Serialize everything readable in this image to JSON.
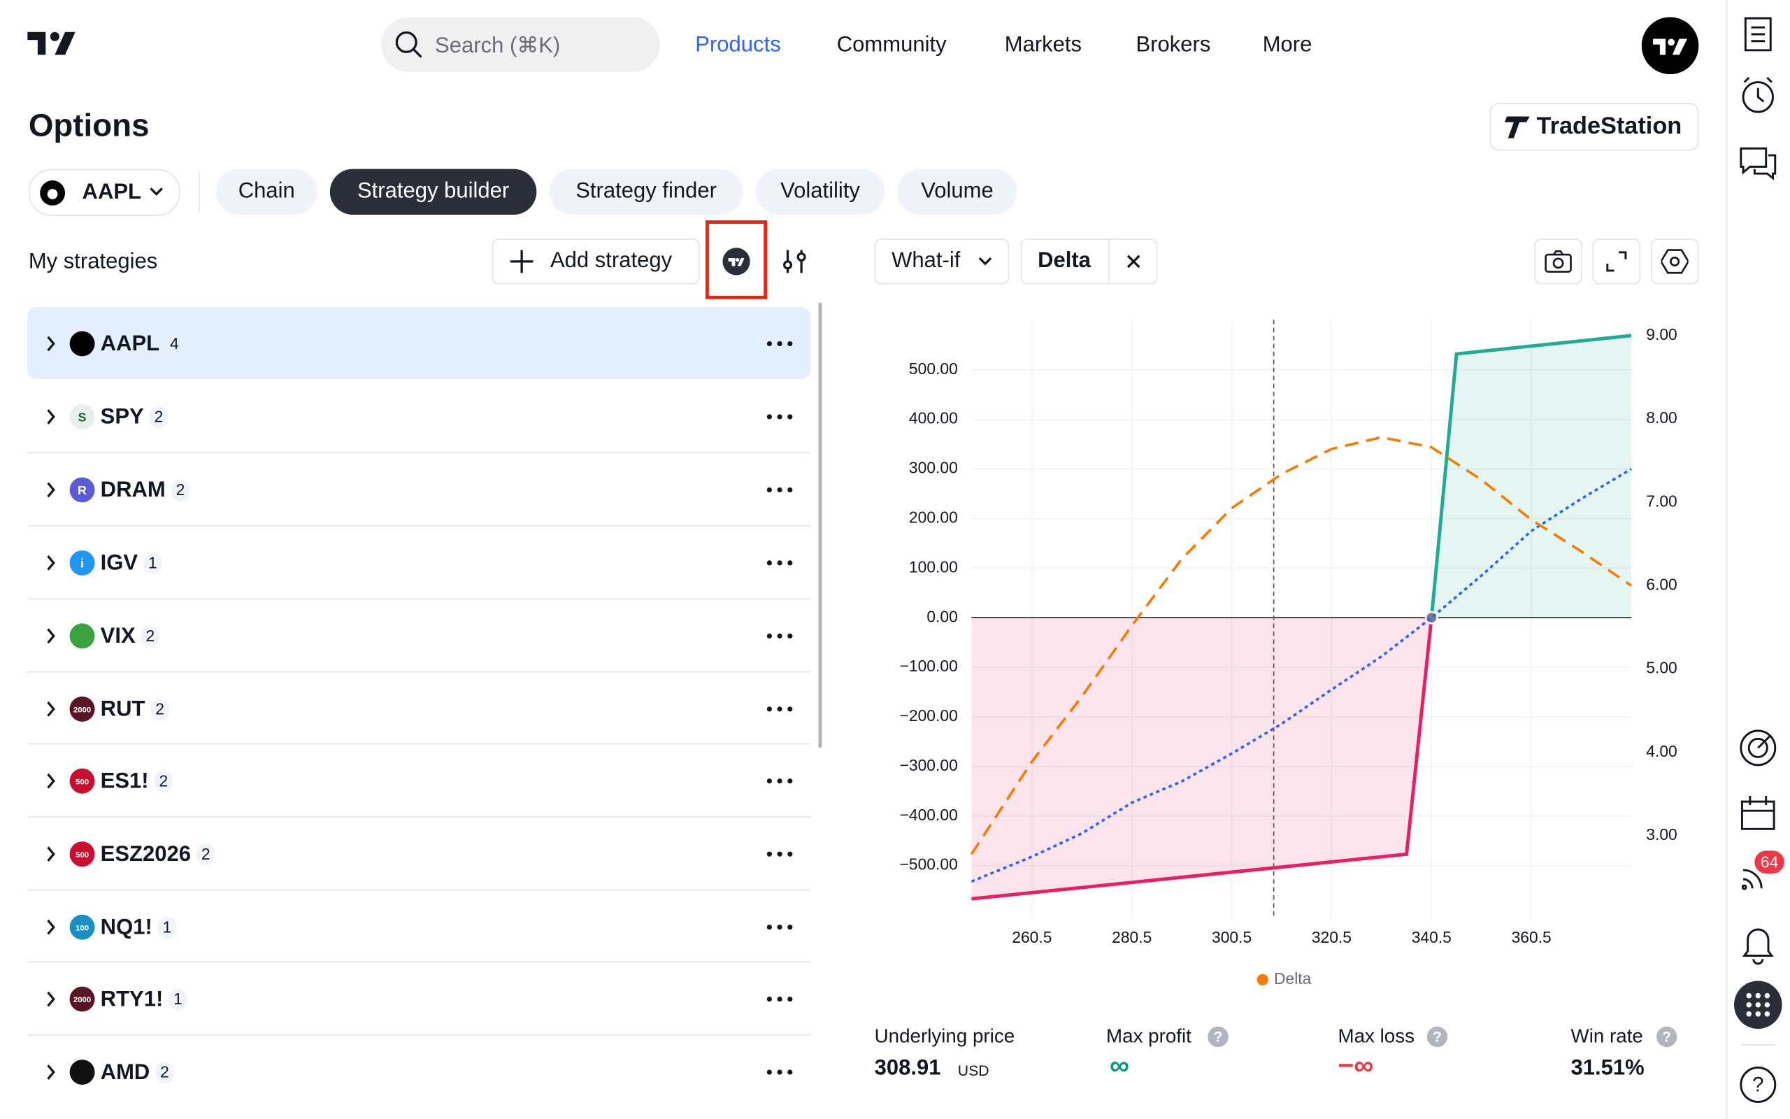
{
  "nav": {
    "search": "Search (⌘K)",
    "links": [
      "Products",
      "Community",
      "Markets",
      "Brokers",
      "More"
    ]
  },
  "header": {
    "title": "Options",
    "broker": "TradeStation"
  },
  "symbol": "AAPL",
  "tabs": [
    "Chain",
    "Strategy builder",
    "Strategy finder",
    "Volatility",
    "Volume"
  ],
  "strategies": {
    "title": "My strategies",
    "add": "Add strategy",
    "items": [
      {
        "name": "AAPL",
        "count": 4
      },
      {
        "name": "SPY",
        "count": 2,
        "icon": "S"
      },
      {
        "name": "DRAM",
        "count": 2,
        "icon": "R"
      },
      {
        "name": "IGV",
        "count": 1,
        "icon": "i"
      },
      {
        "name": "VIX",
        "count": 2
      },
      {
        "name": "RUT",
        "count": 2,
        "icon": "2000"
      },
      {
        "name": "ES1!",
        "count": 2,
        "icon": "500"
      },
      {
        "name": "ESZ2026",
        "count": 2,
        "icon": "500"
      },
      {
        "name": "NQ1!",
        "count": 1,
        "icon": "100"
      },
      {
        "name": "RTY1!",
        "count": 1,
        "icon": "2000"
      },
      {
        "name": "AMD",
        "count": 2
      }
    ]
  },
  "toolbar": {
    "mode": "What-if",
    "metric": "Delta"
  },
  "chart_data": {
    "type": "line",
    "grid": true,
    "xlim": [
      248.4,
      380.5
    ],
    "ylim": [
      -608,
      601
    ],
    "y2lim": [
      2.0,
      9.19
    ],
    "xticks": [
      260.5,
      280.5,
      300.5,
      320.5,
      340.5,
      360.5
    ],
    "yticks": [
      {
        "value": 500,
        "label": "500.00"
      },
      {
        "value": 400,
        "label": "400.00"
      },
      {
        "value": 300,
        "label": "300.00"
      },
      {
        "value": 200,
        "label": "200.00"
      },
      {
        "value": 100,
        "label": "100.00"
      },
      {
        "value": 0,
        "label": "0.00"
      },
      {
        "value": -100,
        "label": "−100.00"
      },
      {
        "value": -200,
        "label": "−200.00"
      },
      {
        "value": -300,
        "label": "−300.00"
      },
      {
        "value": -400,
        "label": "−400.00"
      },
      {
        "value": -500,
        "label": "−500.00"
      }
    ],
    "y2ticks": [
      {
        "value": 9,
        "label": "9.00"
      },
      {
        "value": 8,
        "label": "8.00"
      },
      {
        "value": 7,
        "label": "7.00"
      },
      {
        "value": 6,
        "label": "6.00"
      },
      {
        "value": 5,
        "label": "5.00"
      },
      {
        "value": 4,
        "label": "4.00"
      },
      {
        "value": 3,
        "label": "3.00"
      }
    ],
    "series": [
      {
        "color": "#e91e63",
        "profit_color": "#22ab94",
        "fill": true,
        "x": [
          248.4,
          335.5,
          340.5,
          345.5,
          380.5
        ],
        "values": [
          -567,
          -477,
          0,
          532,
          569
        ]
      },
      {
        "color": "#2962ff",
        "dash": "dotted",
        "x": [
          248.4,
          260.5,
          270.5,
          280.5,
          290.5,
          300.5,
          310.5,
          320.5,
          330.5,
          340.5,
          350.5,
          360.5,
          370.5,
          380.5
        ],
        "values": [
          -532,
          -482,
          -435,
          -373,
          -330,
          -274,
          -214,
          -145,
          -78,
          0,
          85,
          175,
          240,
          300
        ]
      },
      {
        "name": "Delta",
        "color": "#f57c00",
        "dash": "dashed",
        "axis": "y2",
        "x": [
          248.4,
          260.5,
          270.5,
          280.5,
          290.5,
          300.5,
          310.5,
          320.5,
          330.5,
          340.5,
          350.5,
          360.5,
          370.5,
          380.5
        ],
        "values": [
          2.78,
          3.89,
          4.67,
          5.52,
          6.32,
          6.93,
          7.34,
          7.64,
          7.78,
          7.66,
          7.27,
          6.79,
          6.41,
          6.0
        ]
      }
    ]
  },
  "stats": {
    "underlying_label": "Underlying price",
    "underlying": 308.91,
    "currency": "USD",
    "max_profit_label": "Max profit",
    "max_profit": "∞",
    "max_loss_label": "Max loss",
    "max_loss": "−∞",
    "win_rate_label": "Win rate",
    "win_rate": "31.51%"
  },
  "sidebar": {
    "badge": 64
  }
}
